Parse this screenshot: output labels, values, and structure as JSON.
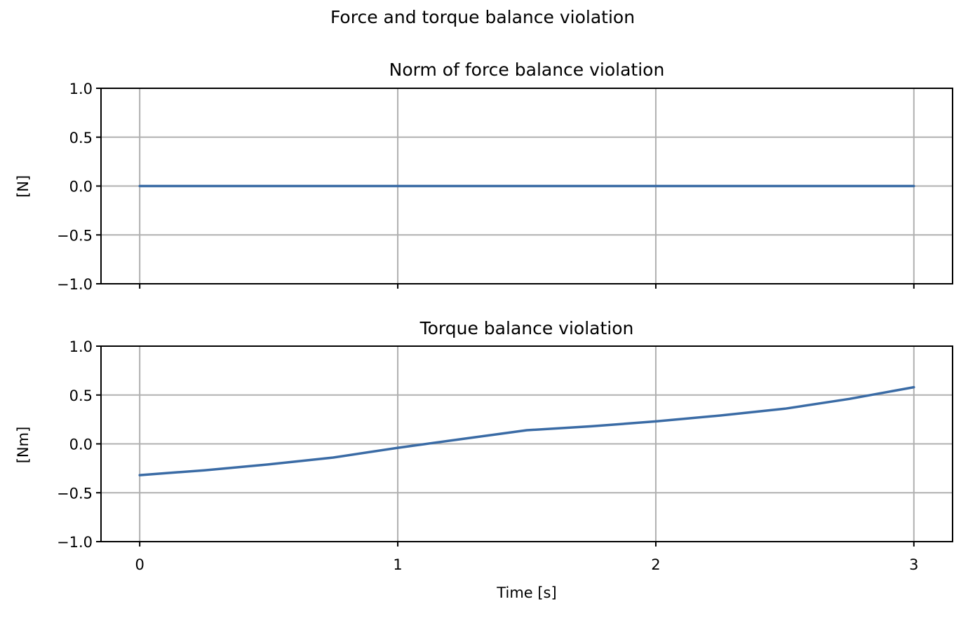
{
  "figure_title": "Force and torque balance violation",
  "colors": {
    "series": "#3a6ba5",
    "grid": "#b0b0b0"
  },
  "chart_data": [
    {
      "type": "line",
      "title": "Norm of force balance violation",
      "xlabel": "",
      "ylabel": "[N]",
      "xlim": [
        -0.15,
        3.15
      ],
      "ylim": [
        -1.0,
        1.0
      ],
      "xticks": [
        0,
        1,
        2,
        3
      ],
      "xtick_labels": [],
      "yticks": [
        1.0,
        0.5,
        0.0,
        -0.5,
        -1.0
      ],
      "ytick_labels": [
        "1.0",
        "0.5",
        "0.0",
        "−0.5",
        "−1.0"
      ],
      "grid": true,
      "series": [
        {
          "x": [
            0,
            0.5,
            1.0,
            1.5,
            2.0,
            2.5,
            3.0
          ],
          "y": [
            0,
            0,
            0,
            0,
            0,
            0,
            0
          ]
        }
      ]
    },
    {
      "type": "line",
      "title": "Torque balance violation",
      "xlabel": "Time [s]",
      "ylabel": "[Nm]",
      "xlim": [
        -0.15,
        3.15
      ],
      "ylim": [
        -1.0,
        1.0
      ],
      "xticks": [
        0,
        1,
        2,
        3
      ],
      "xtick_labels": [
        "0",
        "1",
        "2",
        "3"
      ],
      "yticks": [
        1.0,
        0.5,
        0.0,
        -0.5,
        -1.0
      ],
      "ytick_labels": [
        "1.0",
        "0.5",
        "0.0",
        "−0.5",
        "−1.0"
      ],
      "grid": true,
      "series": [
        {
          "x": [
            0,
            0.25,
            0.5,
            0.75,
            1.0,
            1.25,
            1.5,
            1.75,
            2.0,
            2.25,
            2.5,
            2.75,
            3.0
          ],
          "y": [
            -0.32,
            -0.27,
            -0.21,
            -0.14,
            -0.04,
            0.05,
            0.14,
            0.18,
            0.23,
            0.29,
            0.36,
            0.46,
            0.58
          ]
        }
      ]
    }
  ]
}
